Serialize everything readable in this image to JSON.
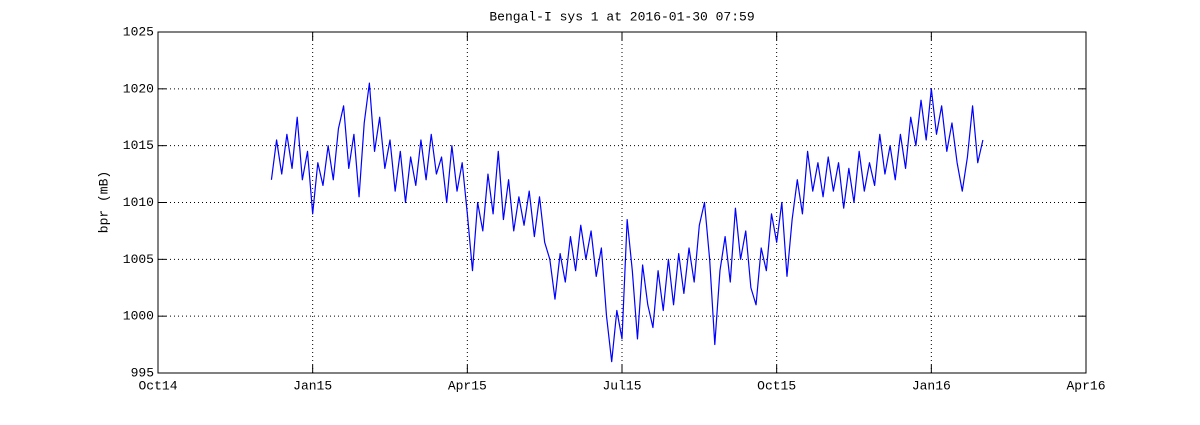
{
  "chart_data": {
    "type": "line",
    "title": "Bengal-I sys 1 at 2016-01-30 07:59",
    "y_label": "bpr (mB)",
    "color": "#0000ff",
    "grid": true,
    "xlim": [
      0,
      18
    ],
    "xticks": [
      {
        "value": 0,
        "label": "Oct14"
      },
      {
        "value": 3,
        "label": "Jan15"
      },
      {
        "value": 6,
        "label": "Apr15"
      },
      {
        "value": 9,
        "label": "Jul15"
      },
      {
        "value": 12,
        "label": "Oct15"
      },
      {
        "value": 15,
        "label": "Jan16"
      },
      {
        "value": 18,
        "label": "Apr16"
      }
    ],
    "ylim": [
      995,
      1025
    ],
    "yticks": [
      995,
      1000,
      1005,
      1010,
      1015,
      1020,
      1025
    ],
    "x": [
      2.2,
      2.3,
      2.4,
      2.5,
      2.6,
      2.7,
      2.8,
      2.9,
      3.0,
      3.1,
      3.2,
      3.3,
      3.4,
      3.5,
      3.6,
      3.7,
      3.8,
      3.9,
      4.0,
      4.1,
      4.2,
      4.3,
      4.4,
      4.5,
      4.6,
      4.7,
      4.8,
      4.9,
      5.0,
      5.1,
      5.2,
      5.3,
      5.4,
      5.5,
      5.6,
      5.7,
      5.8,
      5.9,
      6.0,
      6.1,
      6.2,
      6.3,
      6.4,
      6.5,
      6.6,
      6.7,
      6.8,
      6.9,
      7.0,
      7.1,
      7.2,
      7.3,
      7.4,
      7.5,
      7.6,
      7.7,
      7.8,
      7.9,
      8.0,
      8.1,
      8.2,
      8.3,
      8.4,
      8.5,
      8.6,
      8.7,
      8.8,
      8.9,
      9.0,
      9.1,
      9.2,
      9.3,
      9.4,
      9.5,
      9.6,
      9.7,
      9.8,
      9.9,
      10.0,
      10.1,
      10.2,
      10.3,
      10.4,
      10.5,
      10.6,
      10.7,
      10.8,
      10.9,
      11.0,
      11.1,
      11.2,
      11.3,
      11.4,
      11.5,
      11.6,
      11.7,
      11.8,
      11.9,
      12.0,
      12.1,
      12.2,
      12.3,
      12.4,
      12.5,
      12.6,
      12.7,
      12.8,
      12.9,
      13.0,
      13.1,
      13.2,
      13.3,
      13.4,
      13.5,
      13.6,
      13.7,
      13.8,
      13.9,
      14.0,
      14.1,
      14.2,
      14.3,
      14.4,
      14.5,
      14.6,
      14.7,
      14.8,
      14.9,
      15.0,
      15.1,
      15.2,
      15.3,
      15.4,
      15.5,
      15.6,
      15.7,
      15.8,
      15.9,
      16.0
    ],
    "values": [
      1012,
      1015.5,
      1012.5,
      1016,
      1013,
      1017.5,
      1012,
      1014.5,
      1009,
      1013.5,
      1011.5,
      1015,
      1012,
      1016.5,
      1018.5,
      1013,
      1016,
      1010.5,
      1017,
      1020.5,
      1014.5,
      1017.5,
      1013,
      1015.5,
      1011,
      1014.5,
      1010,
      1014,
      1011.5,
      1015.5,
      1012,
      1016,
      1012.5,
      1014,
      1010,
      1015,
      1011,
      1013.5,
      1009,
      1004,
      1010,
      1007.5,
      1012.5,
      1009,
      1014.5,
      1008.5,
      1012,
      1007.5,
      1010.5,
      1008,
      1011,
      1007,
      1010.5,
      1006.5,
      1005,
      1001.5,
      1005.5,
      1003,
      1007,
      1004,
      1008,
      1005,
      1007.5,
      1003.5,
      1006,
      1000,
      996,
      1000.5,
      998,
      1008.5,
      1004,
      998,
      1004.5,
      1001,
      999,
      1004,
      1000.5,
      1005,
      1001,
      1005.5,
      1002,
      1006,
      1003,
      1008,
      1010,
      1005,
      997.5,
      1004,
      1007,
      1003,
      1009.5,
      1005,
      1007.5,
      1002.5,
      1001,
      1006,
      1004,
      1009,
      1006.5,
      1010,
      1003.5,
      1008.5,
      1012,
      1009,
      1014.5,
      1011,
      1013.5,
      1010.5,
      1014,
      1011,
      1013.5,
      1009.5,
      1013,
      1010,
      1014.5,
      1011,
      1013.5,
      1011.5,
      1016,
      1012.5,
      1015,
      1012,
      1016,
      1013,
      1017.5,
      1015,
      1019,
      1015.5,
      1020,
      1016,
      1018.5,
      1014.5,
      1017,
      1013.5,
      1011,
      1014,
      1018.5,
      1013.5,
      1015.5
    ]
  }
}
